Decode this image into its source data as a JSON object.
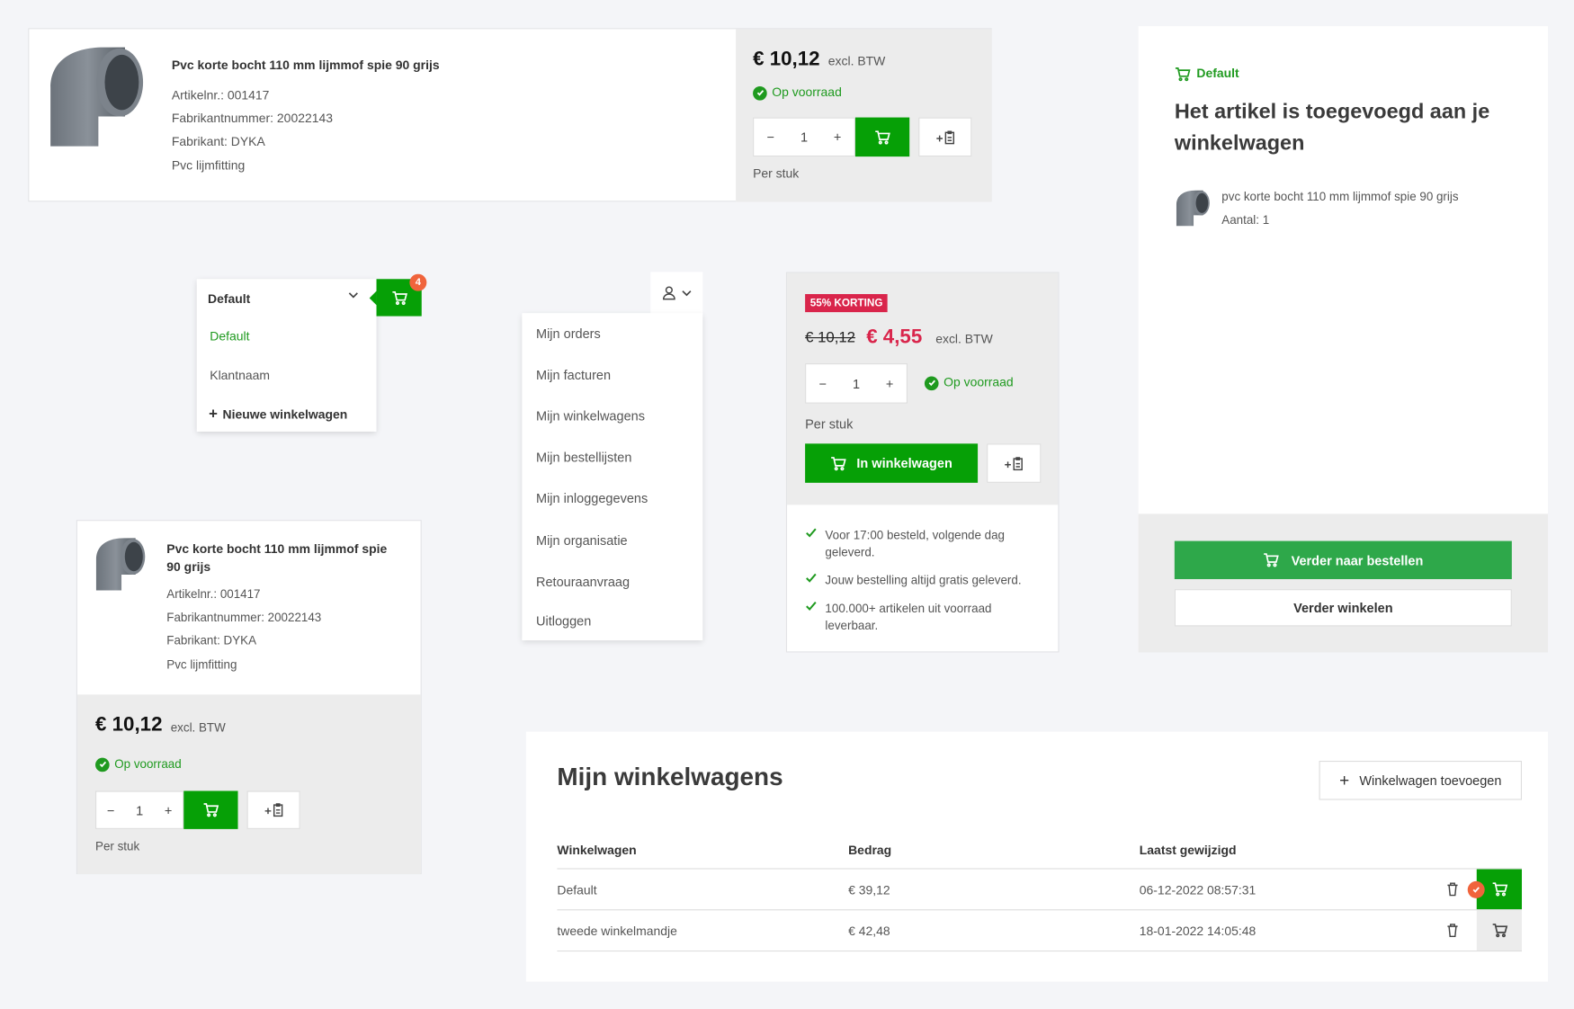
{
  "colors": {
    "brand_green": "#06a006",
    "cta_green": "#2ea84a",
    "sale_red": "#d9254b",
    "badge_orange": "#f0643c",
    "panel_gray": "#ececec",
    "page_bg": "#f4f5f8"
  },
  "product": {
    "title": "Pvc korte bocht 110 mm lijmmof spie 90 grijs",
    "article_no": "Artikelnr.: 001417",
    "manufacturer_no": "Fabrikantnummer: 20022143",
    "manufacturer": "Fabrikant: DYKA",
    "category": "Pvc lijmfitting",
    "price": "€ 10,12",
    "vat": "excl. BTW",
    "stock": "Op voorraad",
    "qty": "1",
    "unit": "Per stuk"
  },
  "cart_switcher": {
    "selected": "Default",
    "options": [
      "Default",
      "Klantnaam"
    ],
    "new_cart": "Nieuwe winkelwagen",
    "badge_count": "4"
  },
  "account_menu": {
    "items": [
      "Mijn orders",
      "Mijn facturen",
      "Mijn winkelwagens",
      "Mijn bestellijsten",
      "Mijn inloggegevens",
      "Mijn organisatie",
      "Retouraanvraag",
      "Uitloggen"
    ]
  },
  "discount": {
    "badge": "55% KORTING",
    "old_price": "€ 10,12",
    "new_price": "€ 4,55",
    "vat": "excl. BTW",
    "qty": "1",
    "stock": "Op voorraad",
    "unit": "Per stuk",
    "add_to_cart": "In winkelwagen",
    "usps": [
      "Voor 17:00 besteld, volgende dag geleverd.",
      "Jouw bestelling altijd gratis geleverd.",
      "100.000+ artikelen uit voorraad leverbaar."
    ]
  },
  "added_panel": {
    "cart_name": "Default",
    "title": "Het artikel is toegevoegd aan je winkelwagen",
    "item_name": "pvc korte bocht 110 mm lijmmof spie 90 grijs",
    "quantity": "Aantal: 1",
    "checkout": "Verder naar bestellen",
    "continue": "Verder winkelen"
  },
  "carts_table": {
    "title": "Mijn winkelwagens",
    "add_button": "Winkelwagen toevoegen",
    "headers": [
      "Winkelwagen",
      "Bedrag",
      "Laatst gewijzigd"
    ],
    "rows": [
      {
        "name": "Default",
        "amount": "€ 39,12",
        "modified": "06-12-2022 08:57:31",
        "active": true
      },
      {
        "name": "tweede winkelmandje",
        "amount": "€ 42,48",
        "modified": "18-01-2022 14:05:48",
        "active": false
      }
    ]
  }
}
